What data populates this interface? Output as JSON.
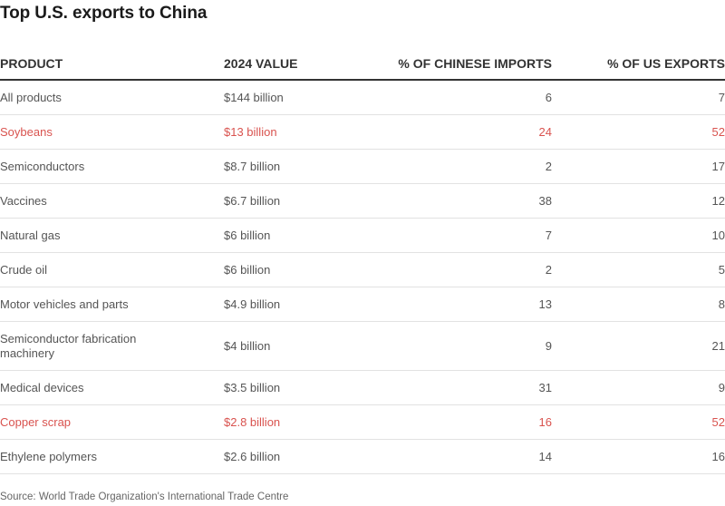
{
  "chart_data": {
    "type": "table",
    "title": "Top U.S. exports to China",
    "columns": [
      "PRODUCT",
      "2024 VALUE",
      "% OF CHINESE IMPORTS",
      "% OF US EXPORTS"
    ],
    "rows": [
      {
        "product": "All products",
        "value": "$144 billion",
        "cn_pct": "6",
        "us_pct": "7",
        "highlight": false
      },
      {
        "product": "Soybeans",
        "value": "$13 billion",
        "cn_pct": "24",
        "us_pct": "52",
        "highlight": true
      },
      {
        "product": "Semiconductors",
        "value": "$8.7 billion",
        "cn_pct": "2",
        "us_pct": "17",
        "highlight": false
      },
      {
        "product": "Vaccines",
        "value": "$6.7 billion",
        "cn_pct": "38",
        "us_pct": "12",
        "highlight": false
      },
      {
        "product": "Natural gas",
        "value": "$6 billion",
        "cn_pct": "7",
        "us_pct": "10",
        "highlight": false
      },
      {
        "product": "Crude oil",
        "value": "$6 billion",
        "cn_pct": "2",
        "us_pct": "5",
        "highlight": false
      },
      {
        "product": "Motor vehicles and parts",
        "value": "$4.9 billion",
        "cn_pct": "13",
        "us_pct": "8",
        "highlight": false
      },
      {
        "product": "Semiconductor fabrication machinery",
        "value": "$4 billion",
        "cn_pct": "9",
        "us_pct": "21",
        "highlight": false
      },
      {
        "product": "Medical devices",
        "value": "$3.5 billion",
        "cn_pct": "31",
        "us_pct": "9",
        "highlight": false
      },
      {
        "product": "Copper scrap",
        "value": "$2.8 billion",
        "cn_pct": "16",
        "us_pct": "52",
        "highlight": true
      },
      {
        "product": "Ethylene polymers",
        "value": "$2.6 billion",
        "cn_pct": "14",
        "us_pct": "16",
        "highlight": false
      }
    ],
    "source": "Source: World Trade Organization's International Trade Centre"
  },
  "colors": {
    "highlight": "#d9534f",
    "text": "#555555",
    "header": "#333333"
  }
}
